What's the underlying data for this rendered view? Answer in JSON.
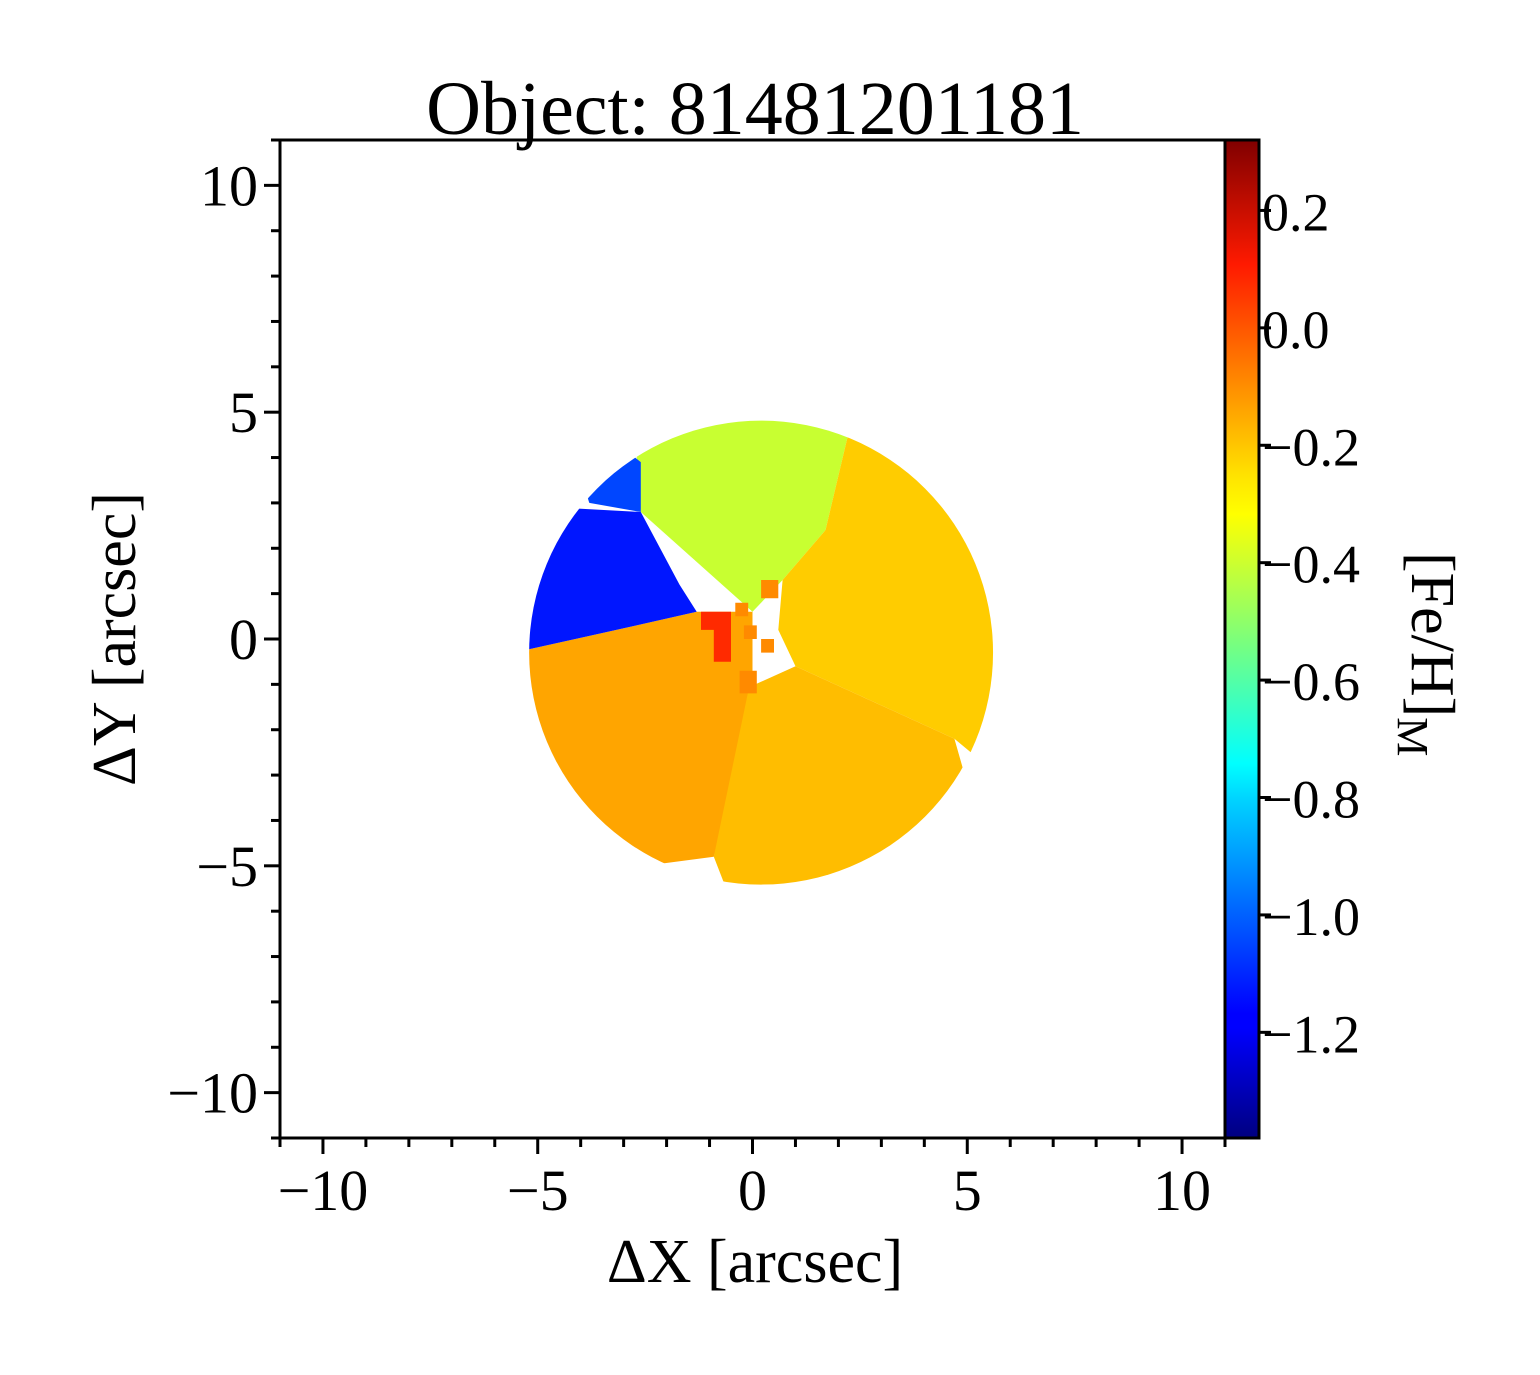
{
  "chart_data": {
    "type": "heatmap",
    "title": "Object: 81481201181",
    "xlabel": "ΔX [arcsec]",
    "ylabel": "ΔY [arcsec]",
    "colorbar_label": "[Fe/H]",
    "colorbar_label_subscript": "M",
    "xlim": [
      -11,
      11
    ],
    "ylim": [
      -11,
      11
    ],
    "x_ticks": [
      -10,
      -5,
      0,
      5,
      10
    ],
    "y_ticks": [
      10,
      5,
      0,
      -5,
      -10
    ],
    "x_tick_labels": [
      "−10",
      "−5",
      "0",
      "5",
      "10"
    ],
    "y_tick_labels": [
      "10",
      "5",
      "0",
      "−5",
      "−10"
    ],
    "colorbar_range": [
      -1.38,
      0.32
    ],
    "colorbar_ticks": [
      0.2,
      0.0,
      -0.2,
      -0.4,
      -0.6,
      -0.8,
      -1.0,
      -1.2
    ],
    "colorbar_tick_labels": [
      "0.2",
      "0.0",
      "−0.2",
      "−0.4",
      "−0.6",
      "−0.8",
      "−1.0",
      "−1.2"
    ],
    "colormap": "jet",
    "grid": false,
    "field_of_view": {
      "shape": "circle",
      "center": [
        0.2,
        -0.3
      ],
      "radius": 5.4
    },
    "regions": [
      {
        "name": "north",
        "value": -0.43,
        "color": "#c8ff31"
      },
      {
        "name": "east",
        "value": -0.22,
        "color": "#ffcc00"
      },
      {
        "name": "south",
        "value": -0.18,
        "color": "#ffbd00"
      },
      {
        "name": "southwest",
        "value": -0.13,
        "color": "#ffa500"
      },
      {
        "name": "northwest",
        "value": -1.22,
        "color": "#0016ff"
      },
      {
        "name": "northwest-edge",
        "value": -1.08,
        "color": "#0046ff"
      },
      {
        "name": "core",
        "value": 0.12,
        "color": "#ff2a00"
      },
      {
        "name": "core-spaxels",
        "value": -0.05,
        "color": "#ff8a00"
      }
    ]
  }
}
